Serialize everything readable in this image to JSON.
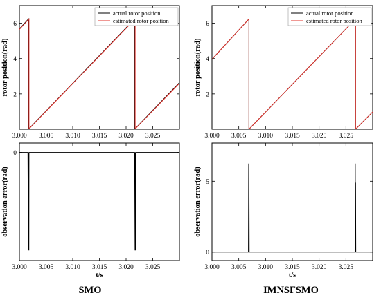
{
  "chart_data": [
    {
      "type": "line",
      "panel": "top-left",
      "ylabel": "rotor position(rad)",
      "xlim": [
        3.0,
        3.03
      ],
      "ylim": [
        0,
        7
      ],
      "xticks": [
        3.0,
        3.005,
        3.01,
        3.015,
        3.02,
        3.025
      ],
      "xtick_labels": [
        "3.000",
        "3.005",
        "3.010",
        "3.015",
        "3.020",
        "3.025"
      ],
      "yticks": [
        2,
        4,
        6
      ],
      "ytick_labels": [
        "2",
        "4",
        "6"
      ],
      "legend": "top-right",
      "series": [
        {
          "name": "actual rotor position",
          "color": "#000000",
          "x": [
            3.0,
            3.0017,
            3.0017,
            3.0216,
            3.0216,
            3.03
          ],
          "y": [
            5.68,
            6.24,
            0.0,
            6.24,
            0.0,
            2.64
          ]
        },
        {
          "name": "estimated rotor position",
          "color": "#e0302a",
          "x": [
            3.0,
            3.0018,
            3.0018,
            3.0217,
            3.0217,
            3.03
          ],
          "y": [
            5.65,
            6.24,
            0.02,
            6.24,
            0.02,
            2.6
          ]
        }
      ]
    },
    {
      "type": "line",
      "panel": "top-right",
      "ylabel": "rotor position(rad)",
      "xlim": [
        3.0,
        3.03
      ],
      "ylim": [
        0,
        7
      ],
      "xticks": [
        3.0,
        3.005,
        3.01,
        3.015,
        3.02,
        3.025
      ],
      "xtick_labels": [
        "3.000",
        "3.005",
        "3.010",
        "3.015",
        "3.020",
        "3.025"
      ],
      "yticks": [
        2,
        4,
        6
      ],
      "ytick_labels": [
        "2",
        "4",
        "6"
      ],
      "legend": "top-right",
      "series": [
        {
          "name": "actual rotor position",
          "color": "#000000",
          "x": [
            3.0,
            3.0069,
            3.0069,
            3.0268,
            3.0268,
            3.03
          ],
          "y": [
            3.96,
            6.24,
            0.0,
            6.24,
            0.0,
            0.98
          ]
        },
        {
          "name": "estimated rotor position",
          "color": "#e0302a",
          "x": [
            3.0,
            3.0069,
            3.0069,
            3.0268,
            3.0268,
            3.03
          ],
          "y": [
            3.96,
            6.24,
            0.0,
            6.24,
            0.0,
            0.98
          ]
        }
      ]
    },
    {
      "type": "line",
      "panel": "bottom-left",
      "ylabel": "observation error(rad)",
      "xlabel": "t/s",
      "xlim": [
        3.0,
        3.03
      ],
      "ylim": [
        -6.9,
        0.6
      ],
      "xticks": [
        3.0,
        3.005,
        3.01,
        3.015,
        3.02,
        3.025
      ],
      "xtick_labels": [
        "3.000",
        "3.005",
        "3.010",
        "3.015",
        "3.020",
        "3.025"
      ],
      "yticks": [
        0
      ],
      "ytick_labels": [
        "0"
      ],
      "series": [
        {
          "color": "#000000",
          "x": [
            3.0,
            3.0016,
            3.00168,
            3.00172,
            3.00178,
            3.0018,
            3.0216,
            3.02168,
            3.02172,
            3.02178,
            3.0218,
            3.03
          ],
          "y": [
            0.0,
            0.0,
            -6.25,
            0.0,
            -6.25,
            0.0,
            0.0,
            -6.25,
            0.0,
            -6.25,
            0.0,
            0.0
          ]
        }
      ]
    },
    {
      "type": "line",
      "panel": "bottom-right",
      "ylabel": "observation error(rad)",
      "xlabel": "t/s",
      "xlim": [
        3.0,
        3.03
      ],
      "ylim": [
        -0.6,
        7.7
      ],
      "xticks": [
        3.0,
        3.005,
        3.01,
        3.015,
        3.02,
        3.025
      ],
      "xtick_labels": [
        "3.000",
        "3.005",
        "3.010",
        "3.015",
        "3.020",
        "3.025"
      ],
      "yticks": [
        0,
        5
      ],
      "ytick_labels": [
        "0",
        "5"
      ],
      "series": [
        {
          "color": "#000000",
          "x": [
            3.0,
            3.0068,
            3.00685,
            3.00688,
            3.00691,
            3.00695,
            3.0267,
            3.02675,
            3.02678,
            3.02681,
            3.02685,
            3.03
          ],
          "y": [
            0.0,
            0.0,
            6.25,
            0.0,
            4.9,
            0.0,
            0.0,
            6.25,
            0.0,
            4.9,
            0.0,
            0.0
          ]
        }
      ]
    }
  ],
  "captions": {
    "left": "SMO",
    "right": "IMNSFSMO"
  }
}
